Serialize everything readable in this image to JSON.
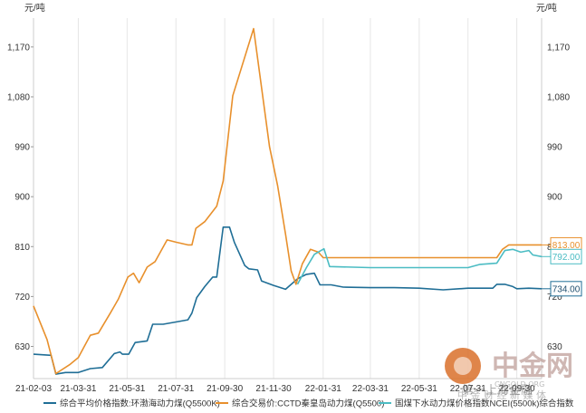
{
  "chart_data": {
    "type": "line",
    "unit_left": "元/吨",
    "unit_right": "元/吨",
    "ylim": [
      572,
      1222
    ],
    "y_ticks": [
      630,
      720,
      810,
      900,
      990,
      1080,
      1170
    ],
    "y_tick_labels": [
      "630",
      "720",
      "810",
      "900",
      "990",
      "1,080",
      "1,170"
    ],
    "x_start": "2021-02-03",
    "x_end": "2022-10-31",
    "x_ticks": [
      "2021-02-03",
      "2021-03-31",
      "2021-05-31",
      "2021-07-31",
      "2021-09-30",
      "2021-11-30",
      "2022-01-31",
      "2022-03-31",
      "2022-05-31",
      "2022-07-31",
      "2022-09-30"
    ],
    "x_tick_labels": [
      "21-02-03",
      "21-03-31",
      "21-05-31",
      "21-07-31",
      "21-09-30",
      "21-11-30",
      "22-01-31",
      "22-03-31",
      "22-05-31",
      "22-07-31",
      "22-09-30"
    ],
    "grid": "vertical",
    "legend_position": "bottom",
    "series": [
      {
        "name": "综合平均价格指数:环渤海动力煤(Q5500K)",
        "color": "#1f6e96",
        "end_label": "734.00",
        "points": [
          [
            "2021-02-03",
            616
          ],
          [
            "2021-02-25",
            614
          ],
          [
            "2021-03-03",
            580
          ],
          [
            "2021-03-15",
            583
          ],
          [
            "2021-03-31",
            583
          ],
          [
            "2021-04-15",
            590
          ],
          [
            "2021-04-30",
            592
          ],
          [
            "2021-05-15",
            617
          ],
          [
            "2021-05-22",
            620
          ],
          [
            "2021-05-25",
            616
          ],
          [
            "2021-06-02",
            616
          ],
          [
            "2021-06-10",
            637
          ],
          [
            "2021-06-25",
            640
          ],
          [
            "2021-07-02",
            670
          ],
          [
            "2021-07-15",
            670
          ],
          [
            "2021-07-31",
            674
          ],
          [
            "2021-08-15",
            678
          ],
          [
            "2021-08-20",
            690
          ],
          [
            "2021-08-26",
            718
          ],
          [
            "2021-09-05",
            738
          ],
          [
            "2021-09-15",
            755
          ],
          [
            "2021-09-20",
            755
          ],
          [
            "2021-09-28",
            845
          ],
          [
            "2021-10-06",
            845
          ],
          [
            "2021-10-12",
            818
          ],
          [
            "2021-10-25",
            776
          ],
          [
            "2021-10-30",
            770
          ],
          [
            "2021-11-10",
            768
          ],
          [
            "2021-11-15",
            748
          ],
          [
            "2021-11-30",
            740
          ],
          [
            "2021-12-15",
            733
          ],
          [
            "2021-12-30",
            752
          ],
          [
            "2022-01-10",
            760
          ],
          [
            "2022-01-20",
            762
          ],
          [
            "2022-01-27",
            741
          ],
          [
            "2022-02-10",
            741
          ],
          [
            "2022-02-25",
            737
          ],
          [
            "2022-03-31",
            736
          ],
          [
            "2022-04-30",
            736
          ],
          [
            "2022-05-31",
            735
          ],
          [
            "2022-06-30",
            732
          ],
          [
            "2022-07-31",
            735
          ],
          [
            "2022-08-31",
            735
          ],
          [
            "2022-09-05",
            742
          ],
          [
            "2022-09-15",
            742
          ],
          [
            "2022-09-25",
            738
          ],
          [
            "2022-09-30",
            734
          ],
          [
            "2022-10-15",
            735
          ],
          [
            "2022-10-31",
            734
          ]
        ]
      },
      {
        "name": "综合交易价:CCTD秦皇岛动力煤(Q5500)",
        "color": "#e8902c",
        "end_label": "813.00",
        "points": [
          [
            "2021-02-03",
            703
          ],
          [
            "2021-02-20",
            642
          ],
          [
            "2021-03-03",
            581
          ],
          [
            "2021-03-20",
            597
          ],
          [
            "2021-03-31",
            610
          ],
          [
            "2021-04-15",
            650
          ],
          [
            "2021-04-25",
            654
          ],
          [
            "2021-05-10",
            690
          ],
          [
            "2021-05-20",
            715
          ],
          [
            "2021-06-01",
            755
          ],
          [
            "2021-06-08",
            762
          ],
          [
            "2021-06-15",
            745
          ],
          [
            "2021-06-25",
            773
          ],
          [
            "2021-07-05",
            783
          ],
          [
            "2021-07-20",
            822
          ],
          [
            "2021-07-31",
            818
          ],
          [
            "2021-08-15",
            813
          ],
          [
            "2021-08-20",
            813
          ],
          [
            "2021-08-25",
            843
          ],
          [
            "2021-09-05",
            855
          ],
          [
            "2021-09-20",
            883
          ],
          [
            "2021-09-28",
            928
          ],
          [
            "2021-10-10",
            1082
          ],
          [
            "2021-11-05",
            1203
          ],
          [
            "2021-11-25",
            990
          ],
          [
            "2021-12-05",
            920
          ],
          [
            "2021-12-15",
            832
          ],
          [
            "2021-12-22",
            766
          ],
          [
            "2021-12-28",
            742
          ],
          [
            "2022-01-05",
            779
          ],
          [
            "2022-01-15",
            805
          ],
          [
            "2022-01-25",
            800
          ],
          [
            "2022-01-31",
            790
          ],
          [
            "2022-02-15",
            790
          ],
          [
            "2022-03-31",
            790
          ],
          [
            "2022-05-31",
            790
          ],
          [
            "2022-07-31",
            790
          ],
          [
            "2022-09-05",
            790
          ],
          [
            "2022-09-12",
            805
          ],
          [
            "2022-09-20",
            813
          ],
          [
            "2022-10-31",
            813
          ]
        ]
      },
      {
        "name": "国煤下水动力煤价格指数NCEI(5500k)综合指数",
        "color": "#4bbcc3",
        "end_label": "792.00",
        "points": [
          [
            "2021-12-30",
            742
          ],
          [
            "2022-01-10",
            772
          ],
          [
            "2022-01-20",
            796
          ],
          [
            "2022-02-01",
            806
          ],
          [
            "2022-02-08",
            774
          ],
          [
            "2022-03-31",
            772
          ],
          [
            "2022-05-31",
            772
          ],
          [
            "2022-07-31",
            772
          ],
          [
            "2022-08-15",
            778
          ],
          [
            "2022-09-05",
            780
          ],
          [
            "2022-09-15",
            803
          ],
          [
            "2022-09-25",
            805
          ],
          [
            "2022-10-05",
            800
          ],
          [
            "2022-10-15",
            803
          ],
          [
            "2022-10-20",
            795
          ],
          [
            "2022-10-31",
            792
          ]
        ]
      }
    ]
  },
  "watermark": {
    "brand": "中金网",
    "sub": "CNGOLD.ORG",
    "slogan": "中 金 财 经 新 媒 体",
    "overlay_text": "第一上海金融"
  }
}
